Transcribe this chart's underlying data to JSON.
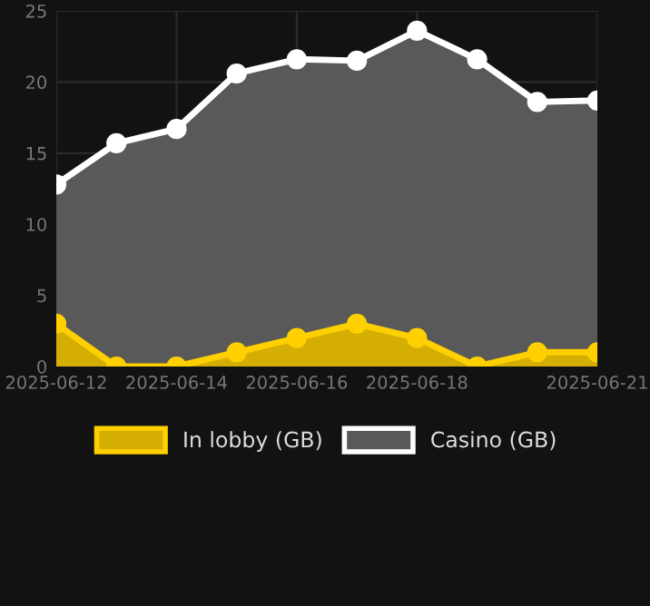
{
  "chart_data": {
    "type": "area",
    "x": [
      "2025-06-12",
      "2025-06-13",
      "2025-06-14",
      "2025-06-15",
      "2025-06-16",
      "2025-06-17",
      "2025-06-18",
      "2025-06-19",
      "2025-06-20",
      "2025-06-21"
    ],
    "series": [
      {
        "name": "In lobby (GB)",
        "color": "#ffd000",
        "values": [
          3,
          0,
          0,
          1,
          2,
          3,
          2,
          0,
          1,
          1
        ]
      },
      {
        "name": "Casino (GB)",
        "color": "#ffffff",
        "values": [
          12.8,
          15.7,
          16.7,
          20.6,
          21.6,
          21.5,
          23.6,
          21.6,
          18.6,
          18.7
        ]
      }
    ],
    "xlim": [
      "2025-06-12",
      "2025-06-21"
    ],
    "xticks": [
      {
        "value": "2025-06-12",
        "label": "2025-06-12"
      },
      {
        "value": "2025-06-14",
        "label": "2025-06-14"
      },
      {
        "value": "2025-06-16",
        "label": "2025-06-16"
      },
      {
        "value": "2025-06-18",
        "label": "2025-06-18"
      },
      {
        "value": "2025-06-21",
        "label": "2025-06-21"
      }
    ],
    "ylim": [
      0,
      25
    ],
    "yticks": [
      0,
      5,
      10,
      15,
      20,
      25
    ],
    "grid": true,
    "legend": "bottom",
    "marker": "circle",
    "line_style": "solid"
  }
}
